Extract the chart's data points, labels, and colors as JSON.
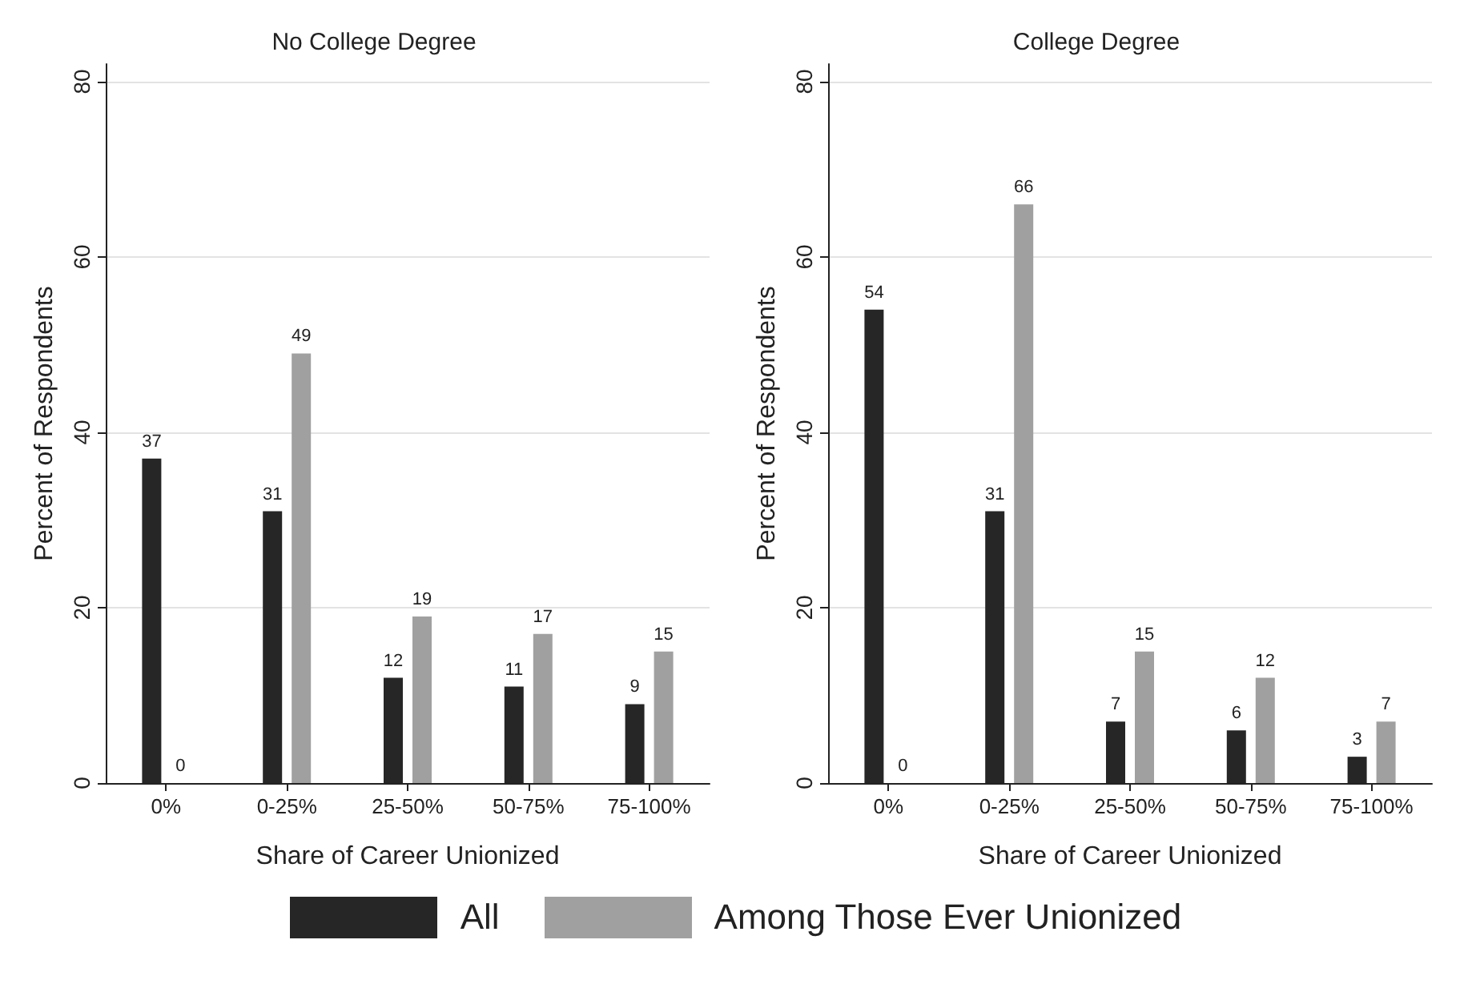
{
  "chart_data": [
    {
      "type": "bar",
      "title": "No College Degree",
      "xlabel": "Share of Career Unionized",
      "ylabel": "Percent of Respondents",
      "categories": [
        "0%",
        "0-25%",
        "25-50%",
        "50-75%",
        "75-100%"
      ],
      "series": [
        {
          "name": "All",
          "color": "#262626",
          "values": [
            37,
            31,
            12,
            11,
            9
          ]
        },
        {
          "name": "Among Those Ever Unionized",
          "color": "#a0a0a0",
          "values": [
            0,
            49,
            19,
            17,
            15
          ]
        }
      ],
      "ylim": [
        0,
        82
      ],
      "yticks": [
        0,
        20,
        40,
        60,
        80
      ],
      "grid": "y",
      "data_labels": true,
      "legend": "bottom"
    },
    {
      "type": "bar",
      "title": "College Degree",
      "xlabel": "Share of Career Unionized",
      "ylabel": "Percent of Respondents",
      "categories": [
        "0%",
        "0-25%",
        "25-50%",
        "50-75%",
        "75-100%"
      ],
      "series": [
        {
          "color": "#262626",
          "values": [
            54,
            31,
            7,
            6,
            3
          ]
        },
        {
          "color": "#a0a0a0",
          "values": [
            0,
            66,
            15,
            12,
            7
          ]
        }
      ],
      "ylim": [
        0,
        82
      ],
      "yticks": [
        0,
        20,
        40,
        60,
        80
      ],
      "grid": "y",
      "data_labels": true
    }
  ]
}
